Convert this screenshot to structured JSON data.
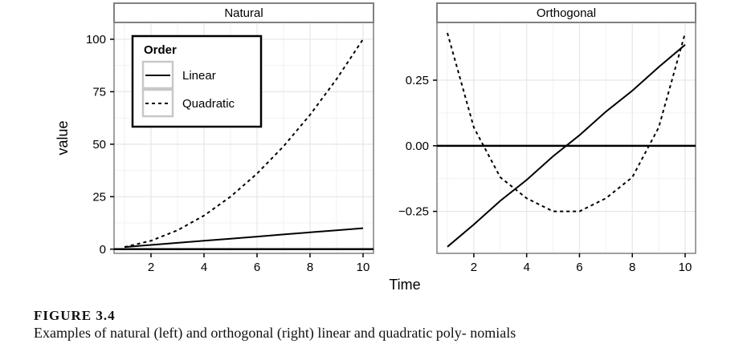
{
  "chart_data": [
    {
      "type": "line",
      "title": "Natural",
      "xlabel": "Time",
      "ylabel": "value",
      "xlim": [
        1,
        10
      ],
      "ylim": [
        -2,
        108
      ],
      "xticks": [
        2,
        4,
        6,
        8,
        10
      ],
      "yticks": [
        0,
        25,
        50,
        75,
        100
      ],
      "ytick_labels": [
        "0",
        "25",
        "50",
        "75",
        "100"
      ],
      "reference_line_y": 0,
      "grid": true,
      "x": [
        1,
        2,
        3,
        4,
        5,
        6,
        7,
        8,
        9,
        10
      ],
      "series": [
        {
          "name": "Linear",
          "style": "solid",
          "values": [
            1,
            2,
            3,
            4,
            5,
            6,
            7,
            8,
            9,
            10
          ]
        },
        {
          "name": "Quadratic",
          "style": "dashed",
          "values": [
            1,
            4,
            9,
            16,
            25,
            36,
            49,
            64,
            81,
            100
          ]
        }
      ],
      "legend": {
        "title": "Order",
        "position": "top-left",
        "entries": [
          "Linear",
          "Quadratic"
        ]
      }
    },
    {
      "type": "line",
      "title": "Orthogonal",
      "xlabel": "Time",
      "ylabel": "",
      "xlim": [
        1,
        10
      ],
      "ylim": [
        -0.41,
        0.47
      ],
      "xticks": [
        2,
        4,
        6,
        8,
        10
      ],
      "yticks": [
        -0.25,
        0,
        0.25
      ],
      "ytick_labels": [
        "−0.25",
        "0.00",
        "0.25"
      ],
      "reference_line_y": 0,
      "grid": true,
      "x": [
        1,
        2,
        3,
        4,
        5,
        6,
        7,
        8,
        9,
        10
      ],
      "series": [
        {
          "name": "Linear",
          "style": "solid",
          "values": [
            -0.385,
            -0.3,
            -0.21,
            -0.13,
            -0.04,
            0.04,
            0.13,
            0.21,
            0.3,
            0.385
          ]
        },
        {
          "name": "Quadratic",
          "style": "dashed",
          "values": [
            0.43,
            0.07,
            -0.12,
            -0.2,
            -0.25,
            -0.25,
            -0.2,
            -0.12,
            0.07,
            0.43
          ]
        }
      ]
    }
  ],
  "caption": {
    "label": "FIGURE 3.4",
    "text": "Examples of natural (left) and orthogonal (right) linear and quadratic poly- nomials"
  },
  "colors": {
    "panel_border": "#808080",
    "strip_fill": "#ffffff",
    "grid": "#e6e6e6",
    "lines": "#000000"
  }
}
